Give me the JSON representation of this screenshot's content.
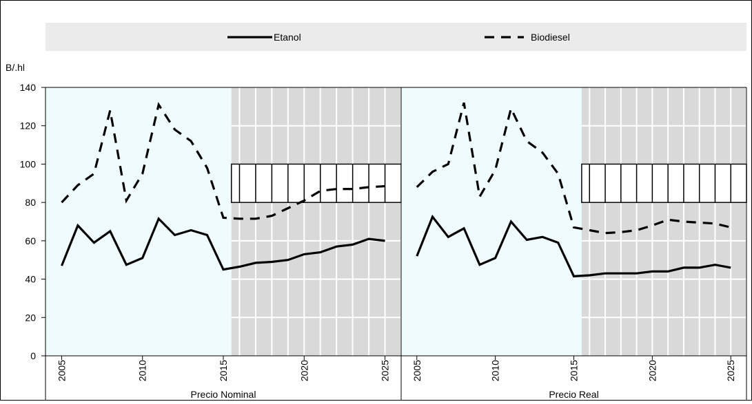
{
  "chart_data": {
    "type": "line",
    "ylabel": "B/.hl",
    "ylim": [
      0,
      140
    ],
    "yticks": [
      0,
      20,
      40,
      60,
      80,
      100,
      120,
      140
    ],
    "legend": {
      "placement": "top",
      "entries": [
        {
          "label": "Etanol",
          "style": "solid"
        },
        {
          "label": "Biodiesel",
          "style": "dashed"
        }
      ]
    },
    "colors": {
      "history_background": "#f0fbfe",
      "projection_background": "#d9d9d9",
      "legend_background": "#ebebeb",
      "lines": "#000000"
    },
    "panels": [
      {
        "label": "Precio Nominal",
        "xlim": [
          2004,
          2026
        ],
        "xticks": [
          2005,
          2010,
          2015,
          2020,
          2025
        ],
        "projection_start": 2015.5,
        "projection_band": [
          80,
          100
        ],
        "series": [
          {
            "name": "Etanol",
            "style": "solid",
            "x": [
              2005,
              2006,
              2007,
              2008,
              2009,
              2010,
              2011,
              2012,
              2013,
              2014,
              2015,
              2016,
              2017,
              2018,
              2019,
              2020,
              2021,
              2022,
              2023,
              2024,
              2025
            ],
            "values": [
              47,
              68,
              59,
              65,
              47.5,
              51,
              71.5,
              63,
              65.5,
              63,
              45,
              46.5,
              48.5,
              49,
              50,
              53,
              54,
              57,
              58,
              61,
              60
            ]
          },
          {
            "name": "Biodiesel",
            "style": "dashed",
            "x": [
              2005,
              2006,
              2007,
              2008,
              2009,
              2010,
              2011,
              2012,
              2013,
              2014,
              2015,
              2016,
              2017,
              2018,
              2019,
              2020,
              2021,
              2022,
              2023,
              2024,
              2025
            ],
            "values": [
              80,
              89,
              95,
              128,
              81,
              95,
              131,
              118,
              112,
              98,
              72,
              71.5,
              71.5,
              73,
              77,
              81,
              86,
              87,
              87,
              88,
              88.5
            ]
          }
        ]
      },
      {
        "label": "Precio Real",
        "xlim": [
          2004,
          2026
        ],
        "xticks": [
          2005,
          2010,
          2015,
          2020,
          2025
        ],
        "projection_start": 2015.5,
        "projection_band": [
          80,
          100
        ],
        "series": [
          {
            "name": "Etanol",
            "style": "solid",
            "x": [
              2005,
              2006,
              2007,
              2008,
              2009,
              2010,
              2011,
              2012,
              2013,
              2014,
              2015,
              2016,
              2017,
              2018,
              2019,
              2020,
              2021,
              2022,
              2023,
              2024,
              2025
            ],
            "values": [
              52,
              72.5,
              62,
              66.5,
              47.5,
              51,
              70,
              60.5,
              62,
              59,
              41.5,
              42,
              43,
              43,
              43,
              44,
              44,
              46,
              46,
              47.5,
              46
            ]
          },
          {
            "name": "Biodiesel",
            "style": "dashed",
            "x": [
              2005,
              2006,
              2007,
              2008,
              2009,
              2010,
              2011,
              2012,
              2013,
              2014,
              2015,
              2016,
              2017,
              2018,
              2019,
              2020,
              2021,
              2022,
              2023,
              2024,
              2025
            ],
            "values": [
              88,
              96,
              100,
              132,
              83,
              97,
              129,
              112,
              106,
              95,
              67,
              65.5,
              64,
              64.5,
              65.5,
              68,
              71,
              70,
              69.5,
              69,
              67
            ]
          }
        ]
      }
    ]
  }
}
